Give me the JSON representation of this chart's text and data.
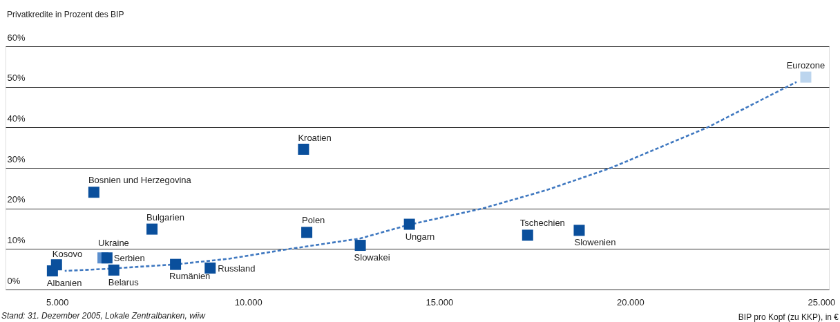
{
  "chart_data": {
    "type": "scatter",
    "ylabel": "Privatkredite in Prozent des BIP",
    "xlabel": "BIP pro Kopf (zu KKP), in €",
    "annotations": [
      "Stand: 31. Dezember 2005, Lokale Zentralbanken, wiiw"
    ],
    "xlim": [
      3650,
      25200
    ],
    "xticks": [
      {
        "value": 5000,
        "label": "5.000"
      },
      {
        "value": 10000,
        "label": "10.000"
      },
      {
        "value": 15000,
        "label": "15.000"
      },
      {
        "value": 20000,
        "label": "20.000"
      },
      {
        "value": 25000,
        "label": "25.000"
      }
    ],
    "ylim": [
      0,
      60
    ],
    "yticks": [
      {
        "value": 0,
        "label": "0%"
      },
      {
        "value": 10,
        "label": "10%"
      },
      {
        "value": 20,
        "label": "20%"
      },
      {
        "value": 30,
        "label": "30%"
      },
      {
        "value": 40,
        "label": "40%"
      },
      {
        "value": 50,
        "label": "50%"
      },
      {
        "value": 60,
        "label": "60%"
      }
    ],
    "grid": "y",
    "marker": "square",
    "series": [
      {
        "type": "line",
        "line_style": "dashed",
        "marker": "none",
        "color": "#3f78c0",
        "x": [
          5200,
          6300,
          8100,
          9500,
          11080,
          12935,
          14220,
          16137,
          17800,
          19495,
          22022,
          24350
        ],
        "values": [
          4.6,
          5.1,
          6.2,
          7.6,
          10,
          12.6,
          16,
          20,
          24.5,
          30,
          40,
          51.2
        ]
      },
      {
        "name": "Albanien",
        "color": "#0a4f9c",
        "x": [
          4877
        ],
        "values": [
          4.6
        ]
      },
      {
        "name": "Kosovo",
        "color": "#0a4f9c",
        "x": [
          4984
        ],
        "values": [
          6.1
        ]
      },
      {
        "name": "Ukraine",
        "color": "#5b8fce",
        "x": [
          6200
        ],
        "values": [
          7.8
        ]
      },
      {
        "name": "Serbien",
        "color": "#0a4f9c",
        "x": [
          6305
        ],
        "values": [
          7.8
        ]
      },
      {
        "name": "Belarus",
        "color": "#0a4f9c",
        "x": [
          6484
        ],
        "values": [
          4.8
        ]
      },
      {
        "name": "Bosnien und Herzegovina",
        "color": "#0a4f9c",
        "x": [
          5962
        ],
        "values": [
          24.0
        ]
      },
      {
        "name": "Bulgarien",
        "color": "#0a4f9c",
        "x": [
          7484
        ],
        "values": [
          14.9
        ]
      },
      {
        "name": "Rumänien",
        "color": "#0a4f9c",
        "x": [
          8099
        ],
        "values": [
          6.2
        ]
      },
      {
        "name": "Russland",
        "color": "#0a4f9c",
        "x": [
          9006
        ],
        "values": [
          5.3
        ]
      },
      {
        "name": "Kroatien",
        "color": "#0a4f9c",
        "x": [
          11449
        ],
        "values": [
          34.6
        ]
      },
      {
        "name": "Polen",
        "color": "#0a4f9c",
        "x": [
          11534
        ],
        "values": [
          14.1
        ]
      },
      {
        "name": "Slowakei",
        "color": "#0a4f9c",
        "x": [
          12935
        ],
        "values": [
          10.9
        ]
      },
      {
        "name": "Ungarn",
        "color": "#0a4f9c",
        "x": [
          14220
        ],
        "values": [
          16.1
        ]
      },
      {
        "name": "Tschechien",
        "color": "#0a4f9c",
        "x": [
          17314
        ],
        "values": [
          13.4
        ]
      },
      {
        "name": "Slowenien",
        "color": "#0a4f9c",
        "x": [
          18664
        ],
        "values": [
          14.6
        ]
      },
      {
        "name": "Eurozone",
        "color": "#bcd5ee",
        "x": [
          24594
        ],
        "values": [
          52.4
        ]
      }
    ]
  }
}
